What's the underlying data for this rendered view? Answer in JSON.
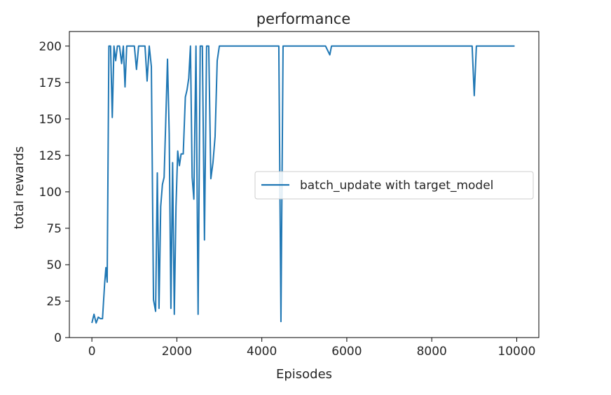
{
  "chart_data": {
    "type": "line",
    "title": "performance",
    "xlabel": "Episodes",
    "ylabel": "total rewards",
    "xlim": [
      -530,
      10520
    ],
    "ylim": [
      0,
      210
    ],
    "xticks": [
      0,
      2000,
      4000,
      6000,
      8000,
      10000
    ],
    "yticks": [
      0,
      25,
      50,
      75,
      100,
      125,
      150,
      175,
      200
    ],
    "grid": false,
    "legend_position": "right",
    "series": [
      {
        "name": "batch_update with target_model",
        "color": "#1f77b4",
        "x": [
          0,
          50,
          100,
          150,
          200,
          250,
          300,
          330,
          360,
          400,
          440,
          480,
          520,
          560,
          600,
          650,
          700,
          740,
          780,
          820,
          860,
          900,
          950,
          1000,
          1050,
          1100,
          1150,
          1200,
          1250,
          1300,
          1350,
          1400,
          1450,
          1500,
          1540,
          1580,
          1620,
          1660,
          1700,
          1740,
          1780,
          1820,
          1860,
          1900,
          1940,
          1980,
          2020,
          2060,
          2100,
          2150,
          2200,
          2240,
          2280,
          2320,
          2360,
          2400,
          2450,
          2500,
          2550,
          2600,
          2650,
          2700,
          2750,
          2800,
          2850,
          2900,
          2950,
          3000,
          3050,
          3100,
          3150,
          3200,
          3250,
          3300,
          3350,
          3400,
          3600,
          3800,
          4000,
          4200,
          4400,
          4450,
          4500,
          4550,
          4600,
          5000,
          5500,
          5600,
          5640,
          5680,
          5700,
          6000,
          7000,
          8000,
          8900,
          8950,
          9000,
          9050,
          9100,
          9500,
          9950
        ],
        "y": [
          10,
          16,
          10,
          14,
          13,
          13,
          37,
          48,
          38,
          200,
          200,
          151,
          200,
          190,
          200,
          200,
          188,
          200,
          172,
          200,
          200,
          200,
          200,
          200,
          184,
          200,
          200,
          200,
          200,
          176,
          200,
          186,
          26,
          18,
          113,
          20,
          90,
          105,
          110,
          150,
          191,
          140,
          20,
          120,
          16,
          90,
          128,
          118,
          126,
          126,
          165,
          170,
          178,
          200,
          110,
          95,
          200,
          16,
          200,
          200,
          67,
          200,
          200,
          109,
          120,
          138,
          190,
          200,
          200,
          200,
          200,
          200,
          200,
          200,
          200,
          200,
          200,
          200,
          200,
          200,
          200,
          11,
          200,
          200,
          200,
          200,
          200,
          194,
          200,
          200,
          200,
          200,
          200,
          200,
          200,
          200,
          166,
          200,
          200,
          200,
          200
        ]
      }
    ]
  }
}
